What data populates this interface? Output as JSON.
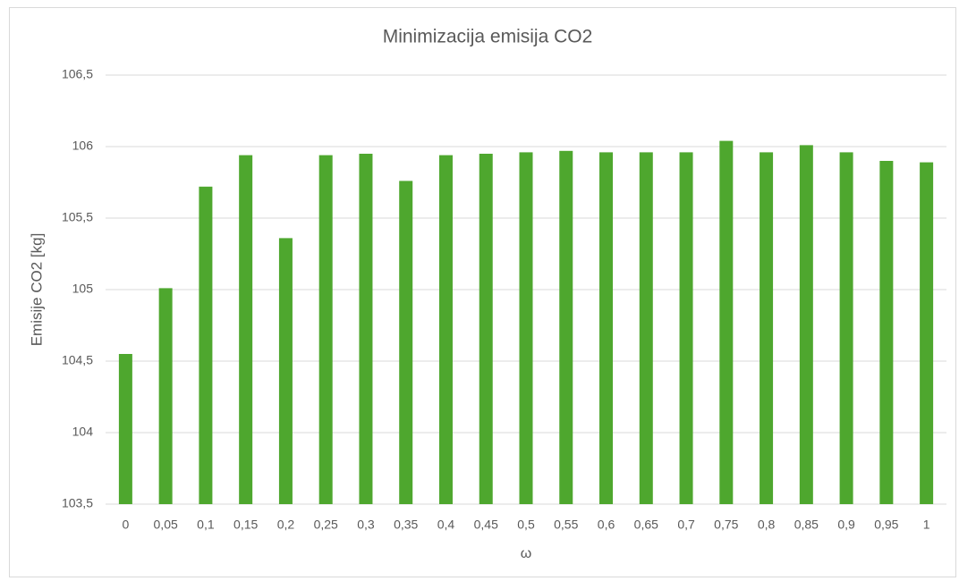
{
  "chart_data": {
    "type": "bar",
    "title": "Minimizacija emisija CO2",
    "x_label": "ω",
    "y_label": "Emisije CO2 [kg]",
    "categories": [
      "0",
      "0,05",
      "0,1",
      "0,15",
      "0,2",
      "0,25",
      "0,3",
      "0,35",
      "0,4",
      "0,45",
      "0,5",
      "0,55",
      "0,6",
      "0,65",
      "0,7",
      "0,75",
      "0,8",
      "0,85",
      "0,9",
      "0,95",
      "1"
    ],
    "values": [
      104.55,
      105.01,
      105.72,
      105.94,
      105.36,
      105.94,
      105.95,
      105.76,
      105.94,
      105.95,
      105.96,
      105.97,
      105.96,
      105.96,
      105.96,
      106.04,
      105.96,
      106.01,
      105.96,
      105.9,
      105.89
    ],
    "color": "#4ea72e",
    "ylim": [
      103.5,
      106.5
    ],
    "yticks": [
      {
        "value": 103.5,
        "label": "103,5"
      },
      104,
      {
        "value": 104.5,
        "label": "104,5"
      },
      105,
      {
        "value": 105.5,
        "label": "105,5"
      },
      106,
      {
        "value": 106.5,
        "label": "106,5"
      }
    ],
    "grid": true
  }
}
